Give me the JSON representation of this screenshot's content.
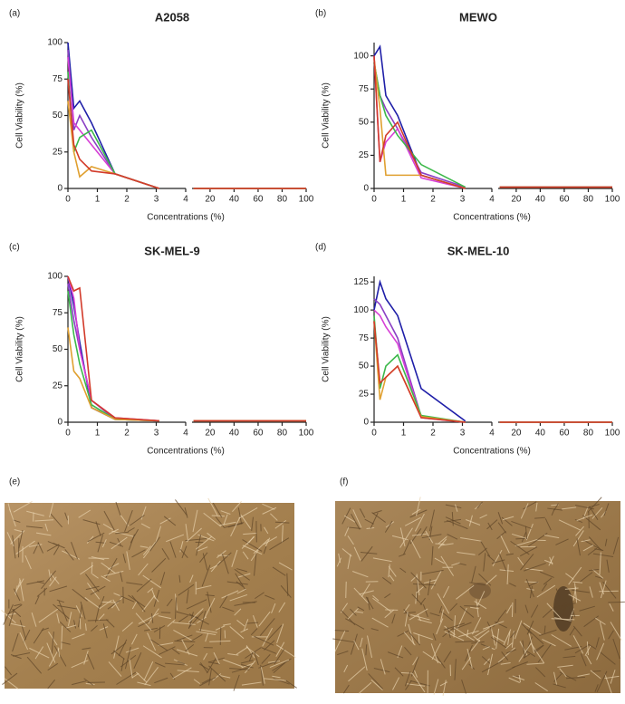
{
  "chart_data": [
    {
      "type": "line",
      "panel_label": "(a)",
      "title": "A2058",
      "y_label": "Cell Viability (%)",
      "x_label": "Concentrations (%)",
      "x": [
        0,
        0.2,
        0.4,
        0.8,
        1.6,
        3.1,
        6.25,
        12.5,
        25,
        50,
        100
      ],
      "xlim": [
        0,
        4
      ],
      "xticks": [
        0,
        1,
        2,
        3,
        4
      ],
      "x2lim": [
        5,
        100
      ],
      "x2ticks": [
        20,
        40,
        60,
        80,
        100
      ],
      "ylim": [
        0,
        100
      ],
      "yticks": [
        0,
        25,
        50,
        75,
        100
      ],
      "series": [
        {
          "color": "#1f1fa8",
          "values": [
            100,
            55,
            60,
            45,
            10,
            0,
            0,
            0,
            0,
            0,
            0
          ]
        },
        {
          "color": "#8a3fc4",
          "values": [
            95,
            40,
            50,
            35,
            10,
            0,
            0,
            0,
            0,
            0,
            0
          ]
        },
        {
          "color": "#d63fd6",
          "values": [
            90,
            45,
            40,
            30,
            10,
            0,
            0,
            0,
            0,
            0,
            0
          ]
        },
        {
          "color": "#3cb84a",
          "values": [
            80,
            25,
            35,
            40,
            10,
            0,
            0,
            0,
            0,
            0,
            0
          ]
        },
        {
          "color": "#e0a030",
          "values": [
            60,
            25,
            8,
            15,
            10,
            0,
            0,
            0,
            0,
            0,
            0
          ]
        },
        {
          "color": "#d23a2a",
          "values": [
            75,
            30,
            20,
            12,
            10,
            0,
            0,
            0,
            0,
            0,
            0
          ]
        }
      ]
    },
    {
      "type": "line",
      "panel_label": "(b)",
      "title": "MEWO",
      "y_label": "Cell Viability (%)",
      "x_label": "Concentrations (%)",
      "x": [
        0,
        0.2,
        0.4,
        0.8,
        1.6,
        3.1,
        6.25,
        12.5,
        25,
        50,
        100
      ],
      "xlim": [
        0,
        4
      ],
      "xticks": [
        0,
        1,
        2,
        3,
        4
      ],
      "x2lim": [
        5,
        100
      ],
      "x2ticks": [
        20,
        40,
        60,
        80,
        100
      ],
      "ylim": [
        0,
        110
      ],
      "yticks": [
        0,
        25,
        50,
        75,
        100
      ],
      "series": [
        {
          "color": "#1f1fa8",
          "values": [
            100,
            107,
            70,
            55,
            10,
            0,
            1,
            1,
            1,
            1,
            1
          ]
        },
        {
          "color": "#8a3fc4",
          "values": [
            95,
            70,
            60,
            45,
            12,
            1,
            1,
            1,
            1,
            1,
            1
          ]
        },
        {
          "color": "#d63fd6",
          "values": [
            100,
            20,
            35,
            45,
            8,
            0,
            1,
            1,
            1,
            1,
            1
          ]
        },
        {
          "color": "#3cb84a",
          "values": [
            95,
            70,
            55,
            40,
            18,
            1,
            1,
            1,
            1,
            1,
            1
          ]
        },
        {
          "color": "#e0a030",
          "values": [
            98,
            60,
            10,
            10,
            10,
            0,
            1,
            1,
            1,
            1,
            1
          ]
        },
        {
          "color": "#d23a2a",
          "values": [
            100,
            20,
            40,
            50,
            10,
            0,
            1,
            1,
            1,
            1,
            1
          ]
        }
      ]
    },
    {
      "type": "line",
      "panel_label": "(c)",
      "title": "SK-MEL-9",
      "y_label": "Cell Viability (%)",
      "x_label": "Concentrations (%)",
      "x": [
        0,
        0.2,
        0.4,
        0.8,
        1.6,
        3.1,
        6.25,
        12.5,
        25,
        50,
        100
      ],
      "xlim": [
        0,
        4
      ],
      "xticks": [
        0,
        1,
        2,
        3,
        4
      ],
      "x2lim": [
        5,
        100
      ],
      "x2ticks": [
        20,
        40,
        60,
        80,
        100
      ],
      "ylim": [
        0,
        100
      ],
      "yticks": [
        0,
        25,
        50,
        75,
        100
      ],
      "series": [
        {
          "color": "#1f1fa8",
          "values": [
            100,
            80,
            55,
            10,
            2,
            1,
            1,
            1,
            1,
            1,
            1
          ]
        },
        {
          "color": "#8a3fc4",
          "values": [
            95,
            70,
            50,
            15,
            2,
            1,
            1,
            1,
            1,
            1,
            1
          ]
        },
        {
          "color": "#d63fd6",
          "values": [
            100,
            85,
            50,
            15,
            3,
            1,
            1,
            1,
            1,
            1,
            1
          ]
        },
        {
          "color": "#3cb84a",
          "values": [
            90,
            60,
            40,
            12,
            2,
            1,
            1,
            1,
            1,
            1,
            1
          ]
        },
        {
          "color": "#e0a030",
          "values": [
            65,
            35,
            30,
            10,
            2,
            1,
            1,
            1,
            1,
            1,
            1
          ]
        },
        {
          "color": "#d23a2a",
          "values": [
            100,
            90,
            92,
            15,
            3,
            1,
            1,
            1,
            1,
            1,
            1
          ]
        }
      ]
    },
    {
      "type": "line",
      "panel_label": "(d)",
      "title": "SK-MEL-10",
      "y_label": "Cell Viability (%)",
      "x_label": "Concentrations (%)",
      "x": [
        0,
        0.2,
        0.4,
        0.8,
        1.6,
        3.1,
        6.25,
        12.5,
        25,
        50,
        100
      ],
      "xlim": [
        0,
        4
      ],
      "xticks": [
        0,
        1,
        2,
        3,
        4
      ],
      "x2lim": [
        5,
        100
      ],
      "x2ticks": [
        20,
        40,
        60,
        80,
        100
      ],
      "ylim": [
        0,
        130
      ],
      "yticks": [
        0,
        25,
        50,
        75,
        100,
        125
      ],
      "series": [
        {
          "color": "#1f1fa8",
          "values": [
            100,
            125,
            110,
            95,
            30,
            1,
            0,
            0,
            0,
            0,
            0
          ]
        },
        {
          "color": "#8a3fc4",
          "values": [
            110,
            105,
            95,
            75,
            5,
            0,
            0,
            0,
            0,
            0,
            0
          ]
        },
        {
          "color": "#d63fd6",
          "values": [
            100,
            95,
            85,
            70,
            4,
            0,
            0,
            0,
            0,
            0,
            0
          ]
        },
        {
          "color": "#3cb84a",
          "values": [
            95,
            30,
            50,
            60,
            6,
            0,
            0,
            0,
            0,
            0,
            0
          ]
        },
        {
          "color": "#e0a030",
          "values": [
            90,
            20,
            40,
            50,
            5,
            0,
            0,
            0,
            0,
            0,
            0
          ]
        },
        {
          "color": "#d23a2a",
          "values": [
            90,
            35,
            40,
            50,
            4,
            0,
            0,
            0,
            0,
            0,
            0
          ]
        }
      ]
    }
  ],
  "images": [
    {
      "label": "(e)"
    },
    {
      "label": "(f)"
    }
  ]
}
